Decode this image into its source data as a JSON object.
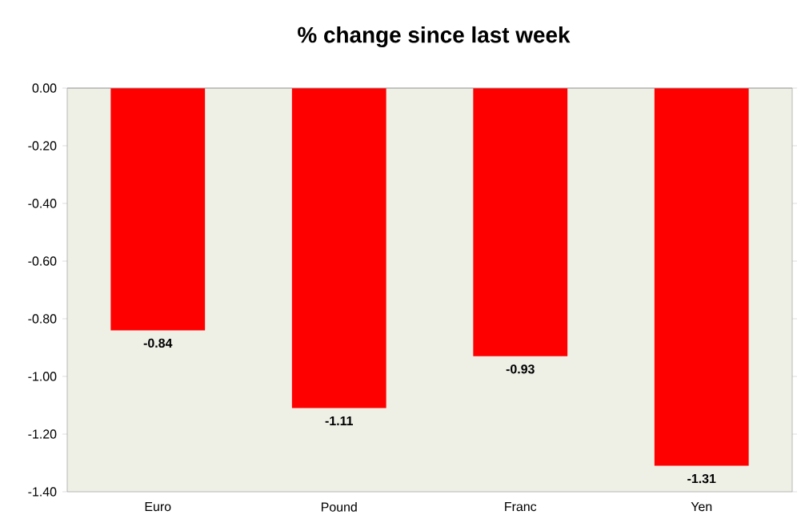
{
  "chart_data": {
    "type": "bar",
    "title": "% change since last week",
    "categories": [
      "Euro",
      "Pound",
      "Franc",
      "Yen"
    ],
    "values": [
      -0.84,
      -1.11,
      -0.93,
      -1.31
    ],
    "value_labels": [
      "-0.84",
      "-1.11",
      "-0.93",
      "-1.31"
    ],
    "color": "#ff0000",
    "ylim": [
      -1.4,
      0
    ],
    "yticks": [
      {
        "value": 0,
        "label": "0.00"
      },
      {
        "value": -0.2,
        "label": "-0.20"
      },
      {
        "value": -0.4,
        "label": "-0.40"
      },
      {
        "value": -0.6,
        "label": "-0.60"
      },
      {
        "value": -0.8,
        "label": "-0.80"
      },
      {
        "value": -1.0,
        "label": "-1.00"
      },
      {
        "value": -1.2,
        "label": "-1.20"
      },
      {
        "value": -1.4,
        "label": "-1.40"
      }
    ],
    "grid": false
  }
}
